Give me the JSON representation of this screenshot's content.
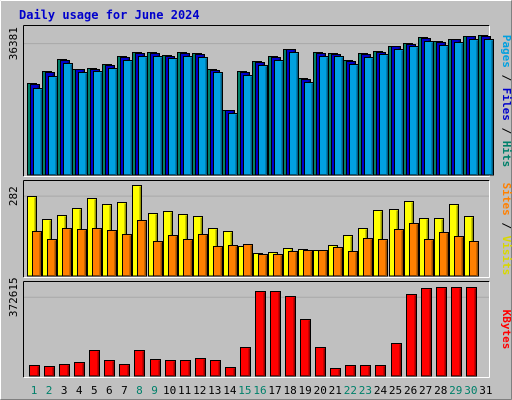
{
  "chart_data": {
    "type": "bar",
    "title": "Daily usage for June 2024",
    "days": [
      "1",
      "2",
      "3",
      "4",
      "5",
      "6",
      "7",
      "8",
      "9",
      "10",
      "11",
      "12",
      "13",
      "14",
      "15",
      "16",
      "17",
      "18",
      "19",
      "20",
      "21",
      "22",
      "23",
      "24",
      "25",
      "26",
      "27",
      "28",
      "29",
      "30",
      "31"
    ],
    "weekend_days": [
      "1",
      "2",
      "8",
      "9",
      "15",
      "16",
      "22",
      "23",
      "29",
      "30"
    ],
    "panels": [
      {
        "id": "hits",
        "ytick_label": "36381",
        "ytick_value": 36381,
        "ymax": 41000,
        "side_label": {
          "parts": [
            {
              "text": "Pages",
              "color": "#00a0e0"
            },
            {
              "text": " / ",
              "color": "#000000"
            },
            {
              "text": "Files",
              "color": "#0000cc"
            },
            {
              "text": " / ",
              "color": "#000000"
            },
            {
              "text": "Hits",
              "color": "#00806a"
            }
          ]
        },
        "series": [
          {
            "name": "Hits",
            "color": "#00806a",
            "values": [
              25400,
              28700,
              32000,
              29500,
              29700,
              30700,
              32900,
              34100,
              34100,
              33300,
              34000,
              33700,
              29400,
              18100,
              28700,
              31600,
              32900,
              35000,
              26800,
              34000,
              33800,
              31800,
              33800,
              34400,
              35800,
              36600,
              38100,
              37000,
              37800,
              38600,
              38700
            ]
          },
          {
            "name": "Files",
            "color": "#0000cc",
            "values": [
              25200,
              28500,
              31800,
              29300,
              29500,
              30500,
              32700,
              33900,
              33900,
              33100,
              33800,
              33500,
              29200,
              17900,
              28500,
              31400,
              32700,
              34800,
              26600,
              33800,
              33600,
              31600,
              33600,
              34200,
              35600,
              36400,
              37900,
              36800,
              37600,
              38400,
              38500
            ]
          },
          {
            "name": "Pages",
            "color": "#00a0e0",
            "values": [
              24200,
              27500,
              31000,
              28400,
              28700,
              29600,
              31800,
              33100,
              33100,
              32300,
              33000,
              32700,
              28400,
              17300,
              27600,
              30600,
              31900,
              34200,
              25800,
              33100,
              32900,
              30800,
              32800,
              33400,
              34800,
              35700,
              37200,
              36000,
              36800,
              37600,
              37800
            ]
          }
        ]
      },
      {
        "id": "visits",
        "ytick_label": "282",
        "ytick_value": 282,
        "ymax": 332,
        "side_label": {
          "parts": [
            {
              "text": "Sites",
              "color": "#ff8000"
            },
            {
              "text": " / ",
              "color": "#000000"
            },
            {
              "text": "Visits",
              "color": "#d8d800"
            }
          ]
        },
        "series": [
          {
            "name": "Visits",
            "color": "#ffff00",
            "values": [
              282,
              200,
              214,
              240,
              276,
              254,
              261,
              320,
              221,
              229,
              220,
              212,
              170,
              160,
              106,
              82,
              85,
              100,
              97,
              92,
              108,
              145,
              168,
              232,
              237,
              264,
              205,
              204,
              253,
              212,
              0
            ]
          },
          {
            "name": "Sites",
            "color": "#ff8000",
            "values": [
              158,
              131,
              168,
              166,
              168,
              162,
              150,
              198,
              122,
              144,
              132,
              149,
              106,
              109,
              112,
              78,
              79,
              90,
              91,
              91,
              102,
              87,
              135,
              130,
              166,
              188,
              132,
              154,
              141,
              122,
              0
            ]
          }
        ]
      },
      {
        "id": "kbytes",
        "ytick_label": "372615",
        "ytick_value": 372615,
        "ymax": 440000,
        "side_label": {
          "parts": [
            {
              "text": "KBytes",
              "color": "#ff0000"
            }
          ]
        },
        "series": [
          {
            "name": "KBytes",
            "color": "#ff0000",
            "values": [
              53000,
              46000,
              56000,
              67000,
              124000,
              75000,
              56000,
              124000,
              82000,
              78000,
              76000,
              83000,
              75000,
              43000,
              137000,
              401000,
              401000,
              379000,
              268000,
              138000,
              40000,
              51000,
              53000,
              53000,
              158000,
              390000,
              414000,
              419000,
              419000,
              419000,
              0
            ]
          }
        ]
      }
    ]
  }
}
